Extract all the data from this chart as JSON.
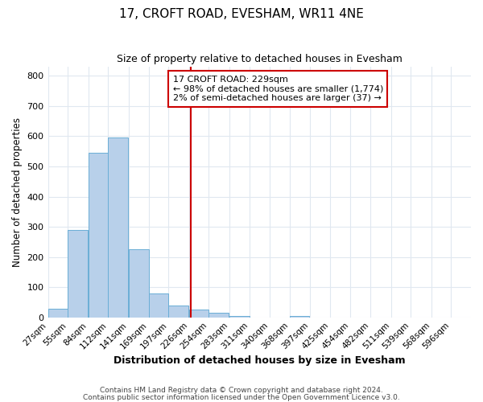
{
  "title": "17, CROFT ROAD, EVESHAM, WR11 4NE",
  "subtitle": "Size of property relative to detached houses in Evesham",
  "xlabel": "Distribution of detached houses by size in Evesham",
  "ylabel": "Number of detached properties",
  "bar_left_edges": [
    27,
    55,
    84,
    112,
    141,
    169,
    197,
    226,
    254,
    283,
    311,
    340,
    368,
    397,
    425,
    454,
    482,
    511,
    539,
    568
  ],
  "bar_heights": [
    28,
    290,
    545,
    595,
    225,
    78,
    38,
    25,
    15,
    5,
    0,
    0,
    5,
    0,
    0,
    0,
    0,
    0,
    0,
    0
  ],
  "bin_width": 28,
  "bar_color": "#b8d0ea",
  "bar_edgecolor": "#6aaed6",
  "vline_x": 229,
  "vline_color": "#cc0000",
  "annotation_text_line1": "17 CROFT ROAD: 229sqm",
  "annotation_text_line2": "← 98% of detached houses are smaller (1,774)",
  "annotation_text_line3": "2% of semi-detached houses are larger (37) →",
  "box_edgecolor": "#cc0000",
  "tick_labels": [
    "27sqm",
    "55sqm",
    "84sqm",
    "112sqm",
    "141sqm",
    "169sqm",
    "197sqm",
    "226sqm",
    "254sqm",
    "283sqm",
    "311sqm",
    "340sqm",
    "368sqm",
    "397sqm",
    "425sqm",
    "454sqm",
    "482sqm",
    "511sqm",
    "539sqm",
    "568sqm",
    "596sqm"
  ],
  "ylim": [
    0,
    830
  ],
  "yticks": [
    0,
    100,
    200,
    300,
    400,
    500,
    600,
    700,
    800
  ],
  "footnote1": "Contains HM Land Registry data © Crown copyright and database right 2024.",
  "footnote2": "Contains public sector information licensed under the Open Government Licence v3.0.",
  "bg_color": "#ffffff",
  "grid_color": "#e0e8f0",
  "xlim_left": 27,
  "xlim_right": 624
}
